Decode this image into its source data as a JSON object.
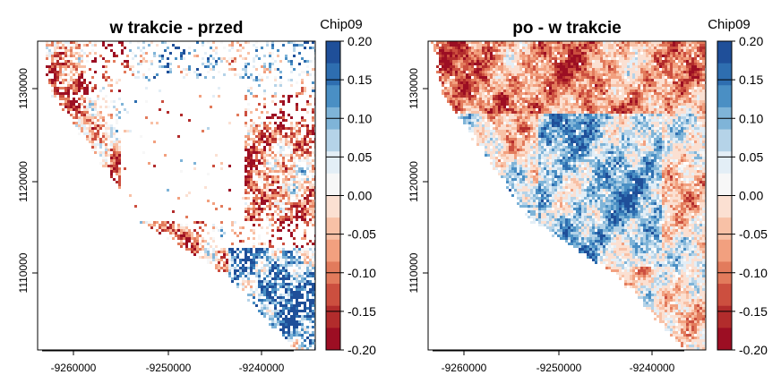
{
  "panels": [
    {
      "title": "w trakcie - przed",
      "legend_title": "Chip09",
      "pattern": "before"
    },
    {
      "title": "po - w trakcie",
      "legend_title": "Chip09",
      "pattern": "after"
    }
  ],
  "x_ticks": [
    "-9260000",
    "-9250000",
    "-9240000"
  ],
  "y_ticks": [
    "1110000",
    "1120000",
    "1130000"
  ],
  "legend": {
    "labels": [
      "0.20",
      "0.15",
      "0.10",
      "0.05",
      "0.00",
      "-0.05",
      "-0.10",
      "-0.15",
      "-0.20"
    ],
    "colors": [
      "#1f4f99",
      "#2e6eb0",
      "#4a8fc4",
      "#7fb4d8",
      "#b5d3e8",
      "#e3eef6",
      "#f7f7f7",
      "#fbe0d2",
      "#f8c1a6",
      "#f2a07f",
      "#e27b5c",
      "#cc4f3f",
      "#b22c2c",
      "#9c0e23"
    ]
  }
}
